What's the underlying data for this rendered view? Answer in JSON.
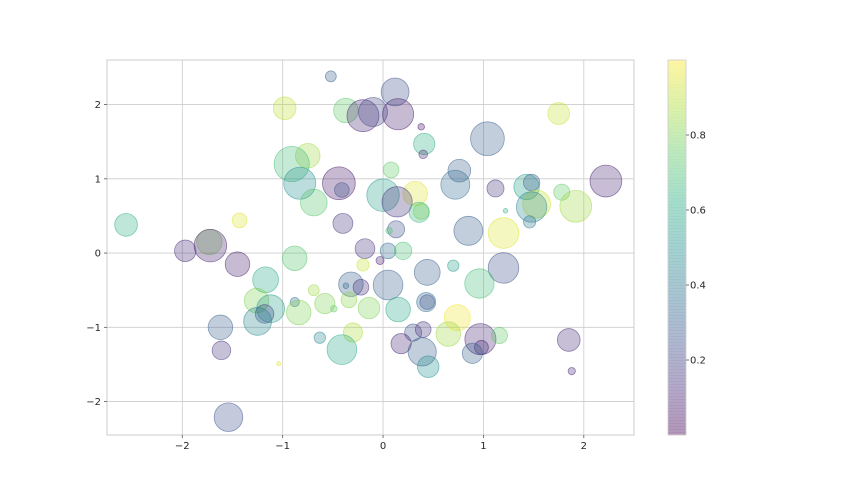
{
  "chart_data": {
    "type": "scatter",
    "title": "",
    "xlabel": "",
    "ylabel": "",
    "xlim": [
      -2.75,
      2.5
    ],
    "ylim": [
      -2.45,
      2.6
    ],
    "xticks": [
      -2,
      -1,
      0,
      1,
      2
    ],
    "xtick_labels": [
      "−2",
      "−1",
      "0",
      "1",
      "2"
    ],
    "yticks": [
      -2,
      -1,
      0,
      1,
      2
    ],
    "ytick_labels": [
      "−2",
      "−1",
      "0",
      "1",
      "2"
    ],
    "grid": true,
    "colormap": "viridis",
    "alpha": 0.3,
    "colorbar": {
      "range": [
        0.0,
        1.0
      ],
      "ticks": [
        0.2,
        0.4,
        0.6,
        0.8
      ],
      "tick_labels": [
        "0.2",
        "0.4",
        "0.6",
        "0.8"
      ]
    },
    "points": [
      {
        "x": -0.52,
        "y": 2.38,
        "c": 0.3,
        "s": 110
      },
      {
        "x": 0.12,
        "y": 2.17,
        "c": 0.25,
        "s": 720
      },
      {
        "x": -0.98,
        "y": 1.95,
        "c": 0.9,
        "s": 480
      },
      {
        "x": -0.37,
        "y": 1.92,
        "c": 0.75,
        "s": 560
      },
      {
        "x": -0.2,
        "y": 1.85,
        "c": 0.1,
        "s": 950
      },
      {
        "x": -0.1,
        "y": 1.9,
        "c": 0.2,
        "s": 780
      },
      {
        "x": 0.15,
        "y": 1.87,
        "c": 0.08,
        "s": 900
      },
      {
        "x": 1.75,
        "y": 1.88,
        "c": 0.92,
        "s": 440
      },
      {
        "x": 0.38,
        "y": 1.7,
        "c": 0.05,
        "s": 40
      },
      {
        "x": 1.04,
        "y": 1.54,
        "c": 0.3,
        "s": 1060
      },
      {
        "x": 0.41,
        "y": 1.47,
        "c": 0.62,
        "s": 420
      },
      {
        "x": 0.4,
        "y": 1.33,
        "c": 0.1,
        "s": 70
      },
      {
        "x": -0.75,
        "y": 1.31,
        "c": 0.85,
        "s": 560
      },
      {
        "x": -0.91,
        "y": 1.2,
        "c": 0.68,
        "s": 1150
      },
      {
        "x": 0.08,
        "y": 1.12,
        "c": 0.75,
        "s": 230
      },
      {
        "x": 0.76,
        "y": 1.11,
        "c": 0.3,
        "s": 480
      },
      {
        "x": -0.44,
        "y": 0.94,
        "c": 0.06,
        "s": 1000
      },
      {
        "x": -0.83,
        "y": 0.94,
        "c": 0.5,
        "s": 950
      },
      {
        "x": 2.22,
        "y": 0.97,
        "c": 0.1,
        "s": 940
      },
      {
        "x": 0.72,
        "y": 0.92,
        "c": 0.35,
        "s": 780
      },
      {
        "x": 1.43,
        "y": 0.89,
        "c": 0.55,
        "s": 600
      },
      {
        "x": 1.12,
        "y": 0.87,
        "c": 0.15,
        "s": 270
      },
      {
        "x": 1.48,
        "y": 0.95,
        "c": 0.3,
        "s": 250
      },
      {
        "x": -0.41,
        "y": 0.85,
        "c": 0.25,
        "s": 200
      },
      {
        "x": 0.32,
        "y": 0.8,
        "c": 0.95,
        "s": 560
      },
      {
        "x": 0.0,
        "y": 0.78,
        "c": 0.55,
        "s": 980
      },
      {
        "x": 1.78,
        "y": 0.82,
        "c": 0.75,
        "s": 240
      },
      {
        "x": 0.14,
        "y": 0.69,
        "c": 0.15,
        "s": 850
      },
      {
        "x": 1.53,
        "y": 0.66,
        "c": 0.92,
        "s": 720
      },
      {
        "x": -0.69,
        "y": 0.68,
        "c": 0.72,
        "s": 660
      },
      {
        "x": 1.48,
        "y": 0.62,
        "c": 0.45,
        "s": 860
      },
      {
        "x": 1.92,
        "y": 0.63,
        "c": 0.85,
        "s": 940
      },
      {
        "x": 0.36,
        "y": 0.55,
        "c": 0.65,
        "s": 380
      },
      {
        "x": 0.38,
        "y": 0.56,
        "c": 0.78,
        "s": 230
      },
      {
        "x": 1.22,
        "y": 0.57,
        "c": 0.65,
        "s": 20
      },
      {
        "x": -2.56,
        "y": 0.38,
        "c": 0.62,
        "s": 480
      },
      {
        "x": -1.43,
        "y": 0.44,
        "c": 0.95,
        "s": 200
      },
      {
        "x": -0.4,
        "y": 0.4,
        "c": 0.15,
        "s": 370
      },
      {
        "x": 1.46,
        "y": 0.42,
        "c": 0.4,
        "s": 140
      },
      {
        "x": 0.13,
        "y": 0.32,
        "c": 0.25,
        "s": 270
      },
      {
        "x": 0.06,
        "y": 0.3,
        "c": 0.7,
        "s": 40
      },
      {
        "x": 0.85,
        "y": 0.3,
        "c": 0.3,
        "s": 780
      },
      {
        "x": 1.2,
        "y": 0.27,
        "c": 0.95,
        "s": 870
      },
      {
        "x": -1.73,
        "y": 0.15,
        "c": 0.8,
        "s": 600
      },
      {
        "x": -1.72,
        "y": 0.1,
        "c": 0.08,
        "s": 980
      },
      {
        "x": -1.97,
        "y": 0.03,
        "c": 0.12,
        "s": 430
      },
      {
        "x": -0.18,
        "y": 0.06,
        "c": 0.15,
        "s": 360
      },
      {
        "x": 0.05,
        "y": 0.03,
        "c": 0.35,
        "s": 230
      },
      {
        "x": 0.2,
        "y": 0.03,
        "c": 0.7,
        "s": 280
      },
      {
        "x": -0.88,
        "y": -0.07,
        "c": 0.72,
        "s": 560
      },
      {
        "x": -1.45,
        "y": -0.15,
        "c": 0.08,
        "s": 560
      },
      {
        "x": -0.03,
        "y": -0.1,
        "c": 0.08,
        "s": 60
      },
      {
        "x": -0.2,
        "y": -0.16,
        "c": 0.92,
        "s": 140
      },
      {
        "x": 0.7,
        "y": -0.17,
        "c": 0.55,
        "s": 120
      },
      {
        "x": 1.2,
        "y": -0.2,
        "c": 0.25,
        "s": 870
      },
      {
        "x": 0.44,
        "y": -0.26,
        "c": 0.3,
        "s": 620
      },
      {
        "x": -1.17,
        "y": -0.36,
        "c": 0.6,
        "s": 620
      },
      {
        "x": 0.96,
        "y": -0.41,
        "c": 0.68,
        "s": 800
      },
      {
        "x": 0.05,
        "y": -0.43,
        "c": 0.3,
        "s": 820
      },
      {
        "x": -0.69,
        "y": -0.5,
        "c": 0.85,
        "s": 110
      },
      {
        "x": -0.32,
        "y": -0.42,
        "c": 0.3,
        "s": 560
      },
      {
        "x": -0.22,
        "y": -0.46,
        "c": 0.15,
        "s": 230
      },
      {
        "x": -0.37,
        "y": -0.44,
        "c": 0.35,
        "s": 30
      },
      {
        "x": -0.34,
        "y": -0.63,
        "c": 0.82,
        "s": 230
      },
      {
        "x": -1.26,
        "y": -0.64,
        "c": 0.8,
        "s": 560
      },
      {
        "x": -1.12,
        "y": -0.75,
        "c": 0.55,
        "s": 720
      },
      {
        "x": -0.88,
        "y": -0.66,
        "c": 0.35,
        "s": 80
      },
      {
        "x": -0.58,
        "y": -0.68,
        "c": 0.8,
        "s": 380
      },
      {
        "x": -0.49,
        "y": -0.75,
        "c": 0.75,
        "s": 40
      },
      {
        "x": -0.14,
        "y": -0.74,
        "c": 0.8,
        "s": 430
      },
      {
        "x": 0.15,
        "y": -0.76,
        "c": 0.6,
        "s": 560
      },
      {
        "x": 0.43,
        "y": -0.66,
        "c": 0.35,
        "s": 340
      },
      {
        "x": 0.44,
        "y": -0.66,
        "c": 0.25,
        "s": 200
      },
      {
        "x": -0.84,
        "y": -0.8,
        "c": 0.8,
        "s": 560
      },
      {
        "x": -1.18,
        "y": -0.82,
        "c": 0.2,
        "s": 320
      },
      {
        "x": -1.25,
        "y": -0.92,
        "c": 0.45,
        "s": 720
      },
      {
        "x": 0.74,
        "y": -0.87,
        "c": 0.98,
        "s": 630
      },
      {
        "x": -1.62,
        "y": -1.0,
        "c": 0.3,
        "s": 560
      },
      {
        "x": -0.3,
        "y": -1.07,
        "c": 0.88,
        "s": 340
      },
      {
        "x": 0.3,
        "y": -1.07,
        "c": 0.25,
        "s": 270
      },
      {
        "x": 0.4,
        "y": -1.03,
        "c": 0.15,
        "s": 230
      },
      {
        "x": 0.65,
        "y": -1.09,
        "c": 0.85,
        "s": 560
      },
      {
        "x": 0.97,
        "y": -1.16,
        "c": 0.1,
        "s": 900
      },
      {
        "x": 1.16,
        "y": -1.11,
        "c": 0.75,
        "s": 240
      },
      {
        "x": -0.63,
        "y": -1.14,
        "c": 0.45,
        "s": 120
      },
      {
        "x": 1.85,
        "y": -1.17,
        "c": 0.12,
        "s": 480
      },
      {
        "x": 0.18,
        "y": -1.22,
        "c": 0.1,
        "s": 380
      },
      {
        "x": -0.41,
        "y": -1.3,
        "c": 0.6,
        "s": 820
      },
      {
        "x": 0.39,
        "y": -1.33,
        "c": 0.3,
        "s": 740
      },
      {
        "x": 0.98,
        "y": -1.27,
        "c": 0.1,
        "s": 180
      },
      {
        "x": 0.89,
        "y": -1.35,
        "c": 0.3,
        "s": 380
      },
      {
        "x": -1.61,
        "y": -1.31,
        "c": 0.15,
        "s": 320
      },
      {
        "x": 0.45,
        "y": -1.53,
        "c": 0.5,
        "s": 430
      },
      {
        "x": -1.04,
        "y": -1.49,
        "c": 0.95,
        "s": 15
      },
      {
        "x": 1.88,
        "y": -1.59,
        "c": 0.1,
        "s": 50
      },
      {
        "x": -1.54,
        "y": -2.21,
        "c": 0.25,
        "s": 760
      }
    ]
  }
}
